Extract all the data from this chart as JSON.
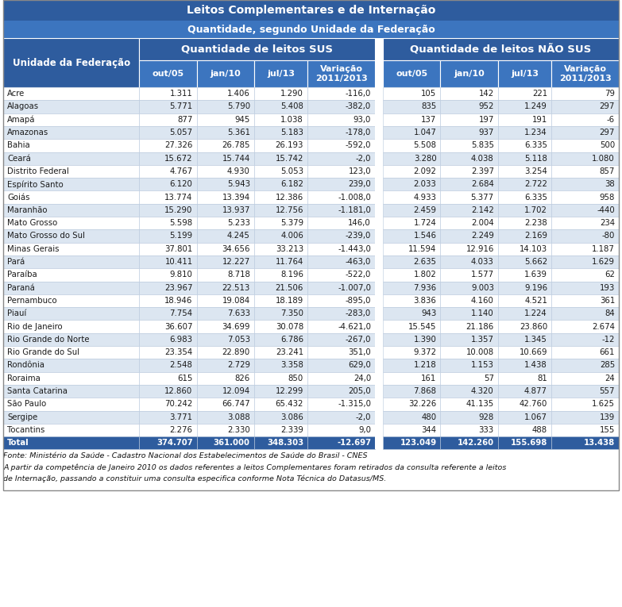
{
  "title1": "Leitos Complementares e de Internação",
  "title2": "Quantidade, segundo Unidade da Federação",
  "col_header_sus": "Quantidade de leitos SUS",
  "col_header_nao_sus": "Quantidade de leitos NÃO SUS",
  "sub_headers": [
    "out/05",
    "jan/10",
    "jul/13",
    "Variação\n2011/2013"
  ],
  "row_header": "Unidade da Federação",
  "states": [
    "Acre",
    "Alagoas",
    "Amapá",
    "Amazonas",
    "Bahia",
    "Ceará",
    "Distrito Federal",
    "Espírito Santo",
    "Goiás",
    "Maranhão",
    "Mato Grosso",
    "Mato Grosso do Sul",
    "Minas Gerais",
    "Pará",
    "Paraíba",
    "Paraná",
    "Pernambuco",
    "Piauí",
    "Rio de Janeiro",
    "Rio Grande do Norte",
    "Rio Grande do Sul",
    "Rondônia",
    "Roraima",
    "Santa Catarina",
    "São Paulo",
    "Sergipe",
    "Tocantins",
    "Total"
  ],
  "sus_data": [
    [
      "1.311",
      "1.406",
      "1.290",
      "-116,0"
    ],
    [
      "5.771",
      "5.790",
      "5.408",
      "-382,0"
    ],
    [
      "877",
      "945",
      "1.038",
      "93,0"
    ],
    [
      "5.057",
      "5.361",
      "5.183",
      "-178,0"
    ],
    [
      "27.326",
      "26.785",
      "26.193",
      "-592,0"
    ],
    [
      "15.672",
      "15.744",
      "15.742",
      "-2,0"
    ],
    [
      "4.767",
      "4.930",
      "5.053",
      "123,0"
    ],
    [
      "6.120",
      "5.943",
      "6.182",
      "239,0"
    ],
    [
      "13.774",
      "13.394",
      "12.386",
      "-1.008,0"
    ],
    [
      "15.290",
      "13.937",
      "12.756",
      "-1.181,0"
    ],
    [
      "5.598",
      "5.233",
      "5.379",
      "146,0"
    ],
    [
      "5.199",
      "4.245",
      "4.006",
      "-239,0"
    ],
    [
      "37.801",
      "34.656",
      "33.213",
      "-1.443,0"
    ],
    [
      "10.411",
      "12.227",
      "11.764",
      "-463,0"
    ],
    [
      "9.810",
      "8.718",
      "8.196",
      "-522,0"
    ],
    [
      "23.967",
      "22.513",
      "21.506",
      "-1.007,0"
    ],
    [
      "18.946",
      "19.084",
      "18.189",
      "-895,0"
    ],
    [
      "7.754",
      "7.633",
      "7.350",
      "-283,0"
    ],
    [
      "36.607",
      "34.699",
      "30.078",
      "-4.621,0"
    ],
    [
      "6.983",
      "7.053",
      "6.786",
      "-267,0"
    ],
    [
      "23.354",
      "22.890",
      "23.241",
      "351,0"
    ],
    [
      "2.548",
      "2.729",
      "3.358",
      "629,0"
    ],
    [
      "615",
      "826",
      "850",
      "24,0"
    ],
    [
      "12.860",
      "12.094",
      "12.299",
      "205,0"
    ],
    [
      "70.242",
      "66.747",
      "65.432",
      "-1.315,0"
    ],
    [
      "3.771",
      "3.088",
      "3.086",
      "-2,0"
    ],
    [
      "2.276",
      "2.330",
      "2.339",
      "9,0"
    ],
    [
      "374.707",
      "361.000",
      "348.303",
      "-12.697"
    ]
  ],
  "nao_sus_data": [
    [
      "105",
      "142",
      "221",
      "79"
    ],
    [
      "835",
      "952",
      "1.249",
      "297"
    ],
    [
      "137",
      "197",
      "191",
      "-6"
    ],
    [
      "1.047",
      "937",
      "1.234",
      "297"
    ],
    [
      "5.508",
      "5.835",
      "6.335",
      "500"
    ],
    [
      "3.280",
      "4.038",
      "5.118",
      "1.080"
    ],
    [
      "2.092",
      "2.397",
      "3.254",
      "857"
    ],
    [
      "2.033",
      "2.684",
      "2.722",
      "38"
    ],
    [
      "4.933",
      "5.377",
      "6.335",
      "958"
    ],
    [
      "2.459",
      "2.142",
      "1.702",
      "-440"
    ],
    [
      "1.724",
      "2.004",
      "2.238",
      "234"
    ],
    [
      "1.546",
      "2.249",
      "2.169",
      "-80"
    ],
    [
      "11.594",
      "12.916",
      "14.103",
      "1.187"
    ],
    [
      "2.635",
      "4.033",
      "5.662",
      "1.629"
    ],
    [
      "1.802",
      "1.577",
      "1.639",
      "62"
    ],
    [
      "7.936",
      "9.003",
      "9.196",
      "193"
    ],
    [
      "3.836",
      "4.160",
      "4.521",
      "361"
    ],
    [
      "943",
      "1.140",
      "1.224",
      "84"
    ],
    [
      "15.545",
      "21.186",
      "23.860",
      "2.674"
    ],
    [
      "1.390",
      "1.357",
      "1.345",
      "-12"
    ],
    [
      "9.372",
      "10.008",
      "10.669",
      "661"
    ],
    [
      "1.218",
      "1.153",
      "1.438",
      "285"
    ],
    [
      "161",
      "57",
      "81",
      "24"
    ],
    [
      "7.868",
      "4.320",
      "4.877",
      "557"
    ],
    [
      "32.226",
      "41.135",
      "42.760",
      "1.625"
    ],
    [
      "480",
      "928",
      "1.067",
      "139"
    ],
    [
      "344",
      "333",
      "488",
      "155"
    ],
    [
      "123.049",
      "142.260",
      "155.698",
      "13.438"
    ]
  ],
  "header_bg": "#2E5C9E",
  "header_text": "#FFFFFF",
  "subheader_bg": "#3C75BF",
  "row_odd_bg": "#FFFFFF",
  "row_even_bg": "#DCE6F1",
  "total_bg": "#2E5C9E",
  "total_text": "#FFFFFF",
  "state_col_bg": "#DCE6F1",
  "footer_text": "Fonte: Ministério da Saúde - Cadastro Nacional dos Estabelecimentos de Saúde do Brasil - CNES\nA partir da competência de Janeiro 2010 os dados referentes a leitos Complementares foram retirados da consulta referente a leitos\nde Internação, passando a constituir uma consulta especifica conforme Nota Técnica do Datasus/MS."
}
